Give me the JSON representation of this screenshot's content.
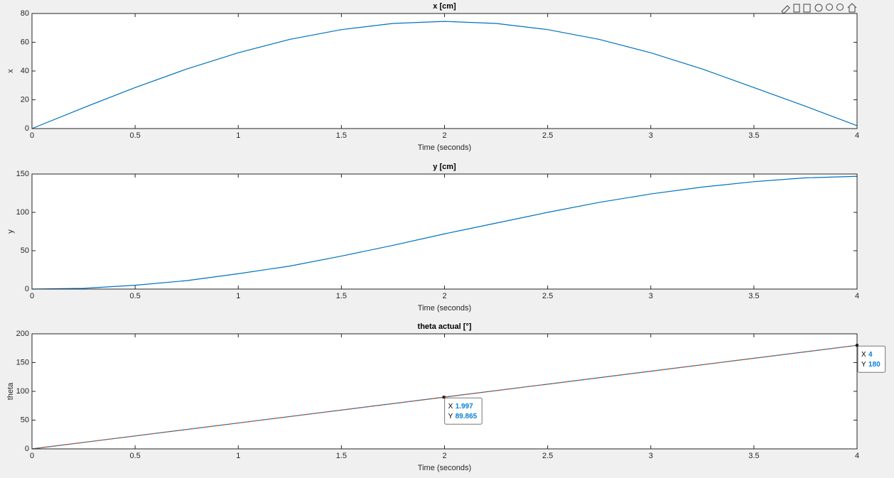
{
  "chart_data": [
    {
      "type": "line",
      "title": "x [cm]",
      "xlabel": "Time (seconds)",
      "ylabel": "x",
      "x": [
        0,
        0.25,
        0.5,
        0.75,
        1,
        1.25,
        1.5,
        1.75,
        2,
        2.25,
        2.5,
        2.75,
        3,
        3.25,
        3.5,
        3.75,
        4
      ],
      "series": [
        {
          "color": "#0072bd",
          "values": [
            0,
            14.5,
            28.5,
            41.4,
            52.7,
            62.0,
            68.8,
            73.1,
            74.5,
            73.1,
            68.8,
            62.0,
            52.7,
            41.4,
            28.5,
            15.5,
            2
          ]
        }
      ],
      "xlim": [
        0,
        4
      ],
      "ylim": [
        0,
        80
      ],
      "xticks": [
        0,
        0.5,
        1,
        1.5,
        2,
        2.5,
        3,
        3.5,
        4
      ],
      "yticks": [
        0,
        20,
        40,
        60,
        80
      ]
    },
    {
      "type": "line",
      "title": "y [cm]",
      "xlabel": "Time (seconds)",
      "ylabel": "y",
      "x": [
        0,
        0.25,
        0.5,
        0.75,
        1,
        1.25,
        1.5,
        1.75,
        2,
        2.25,
        2.5,
        2.75,
        3,
        3.25,
        3.5,
        3.75,
        4
      ],
      "series": [
        {
          "color": "#0072bd",
          "values": [
            0,
            1,
            5,
            11,
            20,
            30,
            43,
            57,
            72,
            86,
            100,
            113,
            124,
            133,
            140,
            145,
            147
          ]
        }
      ],
      "xlim": [
        0,
        4
      ],
      "ylim": [
        0,
        150
      ],
      "xticks": [
        0,
        0.5,
        1,
        1.5,
        2,
        2.5,
        3,
        3.5,
        4
      ],
      "yticks": [
        0,
        50,
        100,
        150
      ]
    },
    {
      "type": "line",
      "title": "theta actual [°]",
      "xlabel": "Time (seconds)",
      "ylabel": "theta",
      "x": [
        0,
        1,
        2,
        3,
        4
      ],
      "series": [
        {
          "color": "#0072bd",
          "values": [
            0,
            45,
            90,
            135,
            180
          ]
        },
        {
          "color": "#d95319",
          "dash": true,
          "values": [
            0,
            45,
            90,
            135,
            180
          ]
        }
      ],
      "xlim": [
        0,
        4
      ],
      "ylim": [
        0,
        200
      ],
      "xticks": [
        0,
        0.5,
        1,
        1.5,
        2,
        2.5,
        3,
        3.5,
        4
      ],
      "yticks": [
        0,
        50,
        100,
        150,
        200
      ],
      "datatip_x_label": "X",
      "datatip_y_label": "Y",
      "datatips": [
        {
          "x": 1.997,
          "y": 89.865
        },
        {
          "x": 4,
          "y": 180
        }
      ]
    }
  ]
}
